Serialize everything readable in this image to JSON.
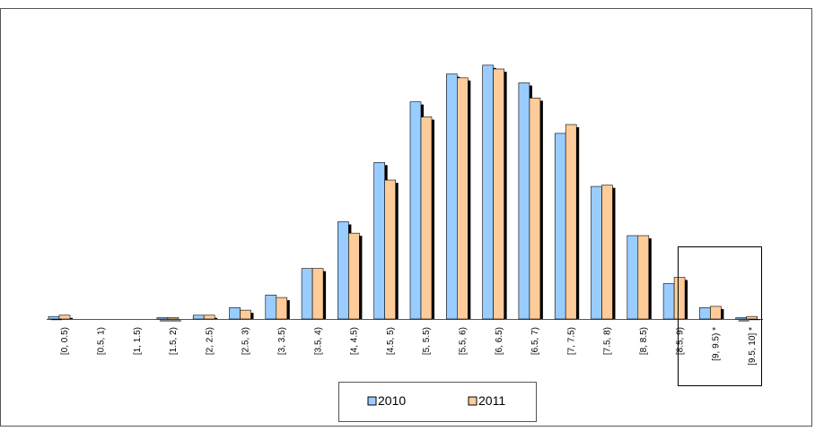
{
  "chart_data": {
    "type": "bar",
    "categories": [
      "[0, 0.5)",
      "[0.5, 1)",
      "[1, 1.5)",
      "[1.5, 2)",
      "[2, 2.5)",
      "[2.5, 3)",
      "[3, 3.5)",
      "[3.5, 4)",
      "[4, 4.5)",
      "[4.5, 5)",
      "[5, 5.5)",
      "[5.5, 6)",
      "[6, 6.5)",
      "[6.5, 7)",
      "[7, 7.5)",
      "[7.5, 8)",
      "[8, 8.5)",
      "[8.5, 9)",
      "[9, 9.5) *",
      "[9.5, 10] *"
    ],
    "series": [
      {
        "name": "2010",
        "color": "#99ccff",
        "values": [
          1,
          0,
          0,
          0.5,
          1.5,
          4.5,
          9.5,
          20,
          38.5,
          62,
          86,
          97,
          100.5,
          93.5,
          73.5,
          52.5,
          33,
          14,
          4.5,
          0.5
        ]
      },
      {
        "name": "2011",
        "color": "#ffcc99",
        "values": [
          1.5,
          0,
          0,
          0.5,
          1.5,
          3.5,
          8.5,
          20,
          34,
          55,
          80,
          95.5,
          99,
          87.5,
          77,
          53,
          33,
          16.5,
          5,
          1
        ]
      }
    ],
    "ylim": [
      0,
      110
    ],
    "grid": false,
    "legend": "bottom-center",
    "highlighted_categories": [
      "[9, 9.5) *",
      "[9.5, 10] *"
    ]
  }
}
